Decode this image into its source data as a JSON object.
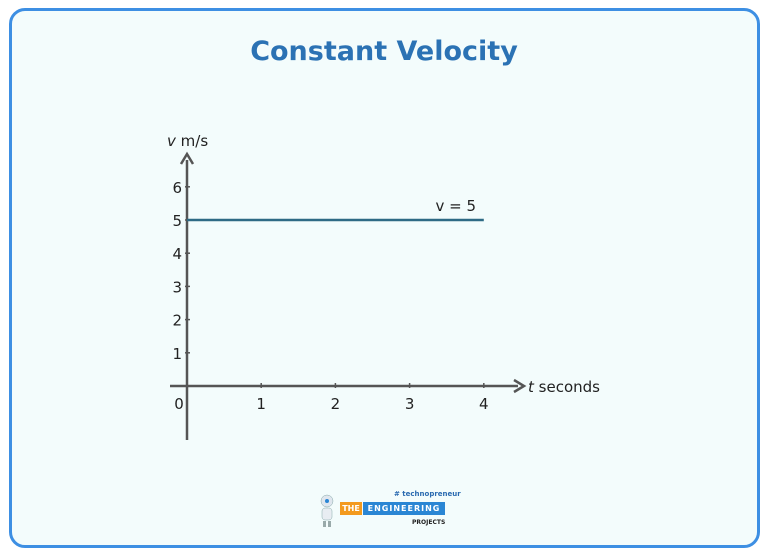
{
  "title": "Constant Velocity",
  "chart_data": {
    "type": "line",
    "title": "Constant Velocity",
    "xlabel_var": "t",
    "xlabel_unit": "seconds",
    "ylabel_var": "v",
    "ylabel_unit": "m/s",
    "xlim": [
      0,
      4
    ],
    "ylim": [
      0,
      6
    ],
    "x_ticks": [
      "0",
      "1",
      "2",
      "3",
      "4"
    ],
    "y_ticks": [
      "1",
      "2",
      "3",
      "4",
      "5",
      "6"
    ],
    "series": [
      {
        "x": [
          0,
          4
        ],
        "y": [
          5,
          5
        ]
      }
    ],
    "annotation": "v = 5",
    "grid": false,
    "line_color": "#2e6a85",
    "axis_color": "#555555"
  },
  "logo": {
    "tagline": "# technopreneur",
    "the": "THE",
    "engineering": "ENGINEERING",
    "projects": "PROJECTS"
  },
  "colors": {
    "border": "#3d8fe3",
    "background": "#f3fcfc",
    "title": "#2b72b4"
  }
}
